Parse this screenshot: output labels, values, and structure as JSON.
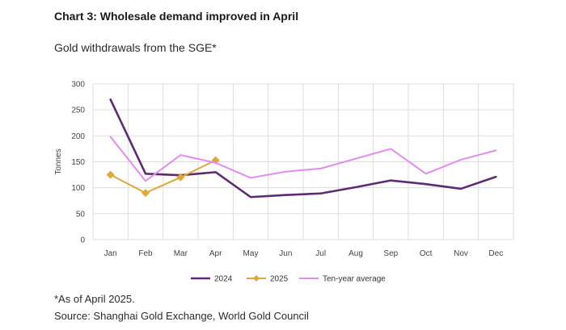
{
  "header": {
    "title": "Chart 3: Wholesale demand improved in April",
    "subtitle": "Gold withdrawals from the SGE*"
  },
  "footer": {
    "note": "*As of April 2025.",
    "source": "Source: Shanghai Gold Exchange, World Gold Council"
  },
  "chart_data": {
    "type": "line",
    "title": "",
    "xlabel": "",
    "ylabel": "Tonnes",
    "categories": [
      "Jan",
      "Feb",
      "Mar",
      "Apr",
      "May",
      "Jun",
      "Jul",
      "Aug",
      "Sep",
      "Oct",
      "Nov",
      "Dec"
    ],
    "yticks": [
      "0",
      "50",
      "100",
      "150",
      "200",
      "250",
      "300"
    ],
    "ylim": [
      0,
      300
    ],
    "grid": true,
    "legend_position": "bottom",
    "series": [
      {
        "name": "2024",
        "color": "#5e2b73",
        "marker": "none",
        "values": [
          270,
          127,
          124,
          130,
          82,
          86,
          89,
          101,
          114,
          107,
          98,
          121
        ]
      },
      {
        "name": "2025",
        "color": "#e0a83a",
        "marker": "diamond",
        "values": [
          125,
          90,
          120,
          153,
          null,
          null,
          null,
          null,
          null,
          null,
          null,
          null
        ]
      },
      {
        "name": "Ten-year average",
        "color": "#e28cf2",
        "marker": "none",
        "values": [
          198,
          113,
          163,
          148,
          119,
          131,
          137,
          156,
          175,
          127,
          154,
          172
        ]
      }
    ]
  }
}
